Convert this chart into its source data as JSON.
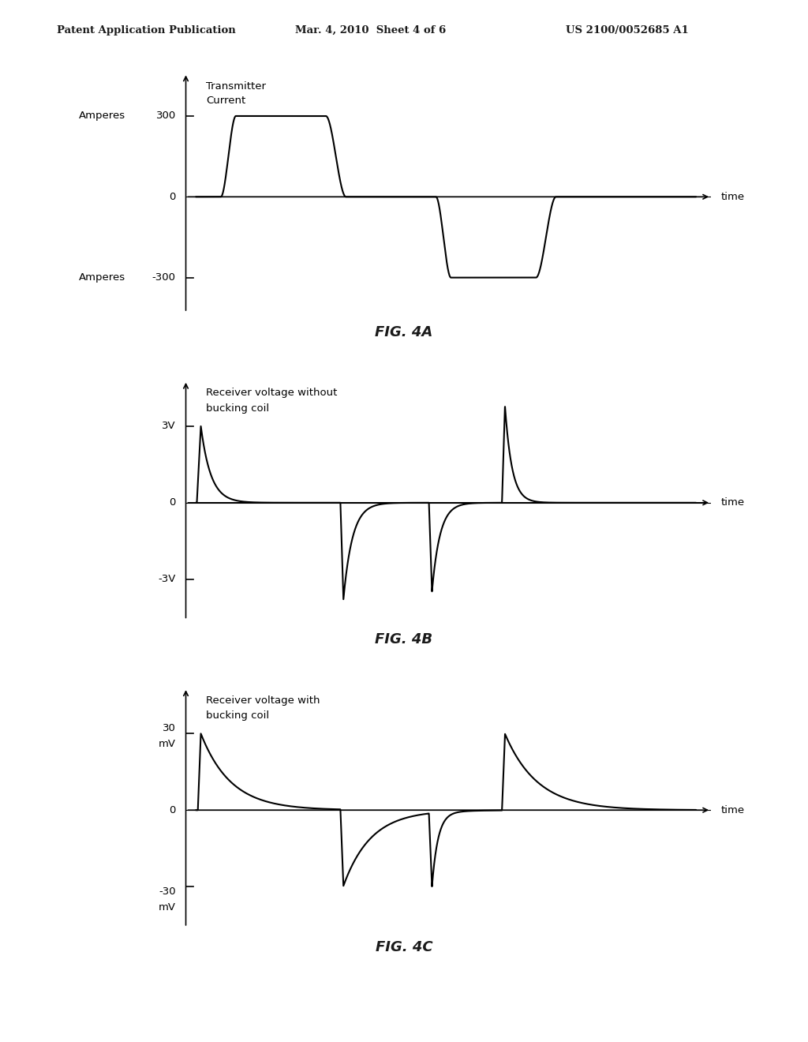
{
  "header_left": "Patent Application Publication",
  "header_mid": "Mar. 4, 2010  Sheet 4 of 6",
  "header_right": "US 2100/0052685 A1",
  "fig4a_title": "FIG. 4A",
  "fig4b_title": "FIG. 4B",
  "fig4c_title": "FIG. 4C",
  "xlabel": "time",
  "background_color": "#ffffff",
  "line_color": "#000000",
  "text_color": "#1a1a1a",
  "ax_bg": "#ffffff"
}
